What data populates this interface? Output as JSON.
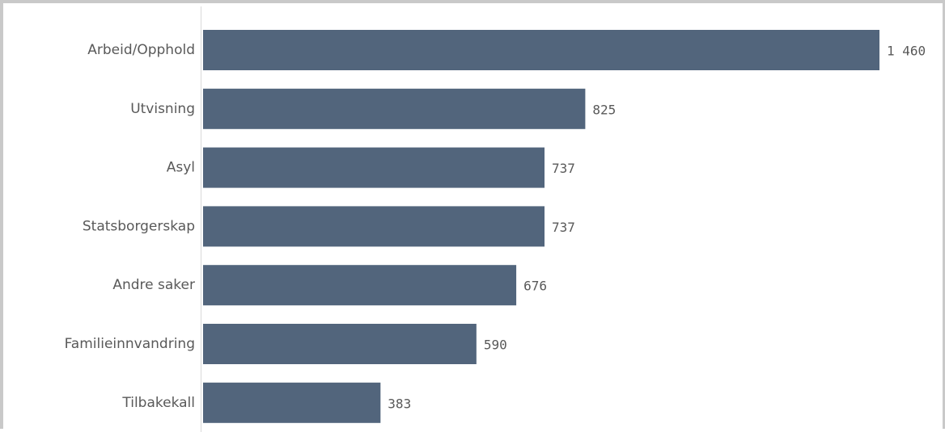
{
  "chart_data": {
    "type": "bar",
    "orientation": "horizontal",
    "categories": [
      "Arbeid/Opphold",
      "Utvisning",
      "Asyl",
      "Statsborgerskap",
      "Andre saker",
      "Familieinnvandring",
      "Tilbakekall"
    ],
    "values": [
      1460,
      825,
      737,
      737,
      676,
      590,
      383
    ],
    "value_labels": [
      "1 460",
      "825",
      "737",
      "737",
      "676",
      "590",
      "383"
    ],
    "xlim": [
      0,
      1460
    ],
    "grid": false,
    "colors": {
      "bar": "#52657c",
      "axis": "#d9d9d9",
      "text": "#595959",
      "frame": "#c9c9c9"
    }
  }
}
